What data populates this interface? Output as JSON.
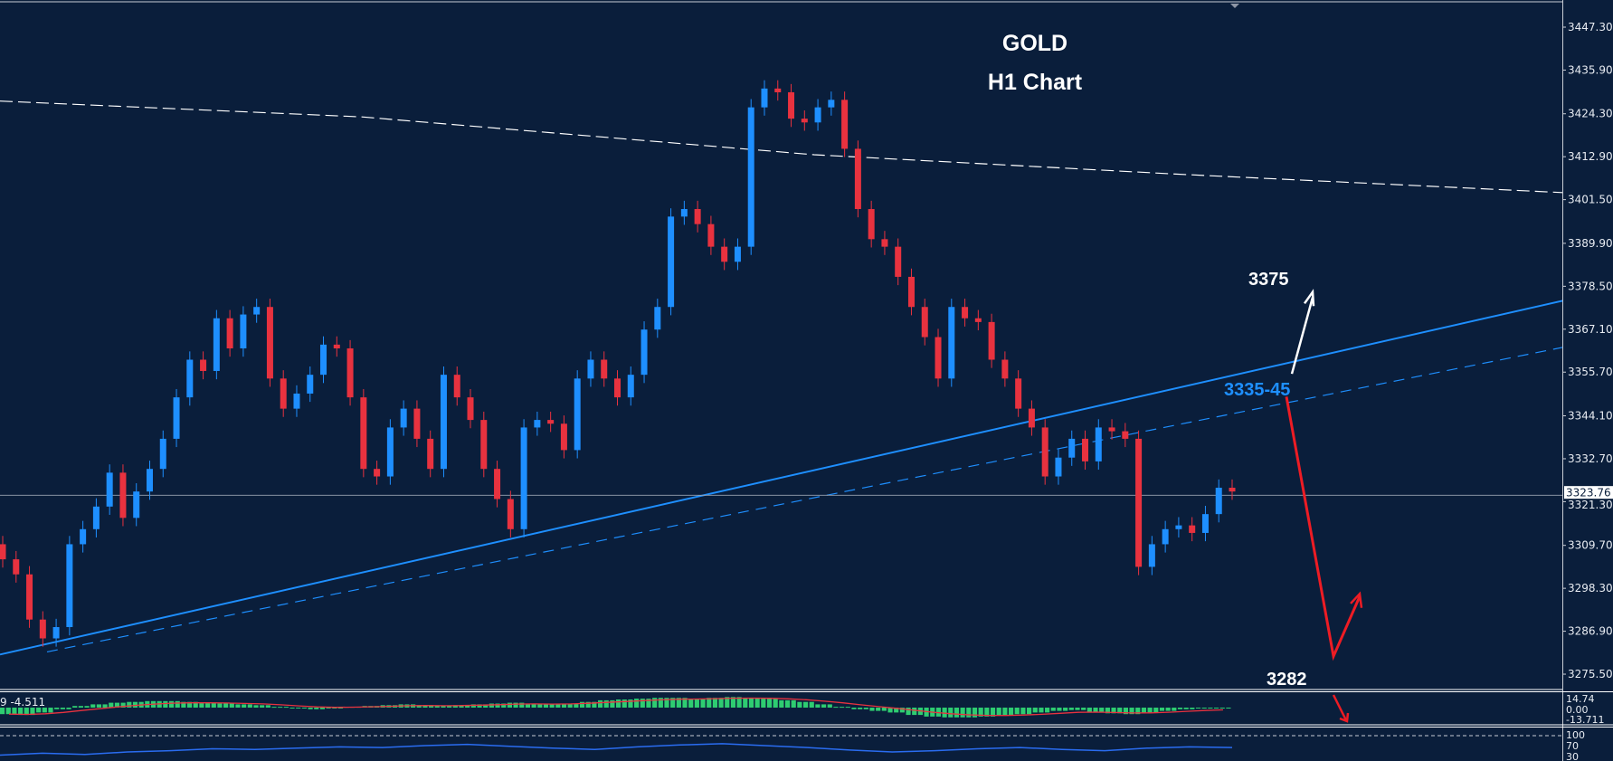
{
  "chart_data": {
    "type": "candlestick",
    "title": "GOLD",
    "subtitle": "H1 Chart",
    "ylim": [
      3270,
      3453
    ],
    "y_ticks": [
      "3447.30",
      "3435.90",
      "3424.30",
      "3412.90",
      "3401.50",
      "3389.90",
      "3378.50",
      "3367.10",
      "3355.70",
      "3344.10",
      "3332.70",
      "3321.30",
      "3309.70",
      "3298.30",
      "3286.90",
      "3275.50"
    ],
    "current_price": "3323.76",
    "first_open": 3310,
    "closes": [
      3306,
      3302,
      3290,
      3285,
      3288,
      3310,
      3314,
      3320,
      3329,
      3317,
      3324,
      3330,
      3338,
      3349,
      3359,
      3356,
      3370,
      3362,
      3371,
      3373,
      3354,
      3346,
      3350,
      3355,
      3363,
      3362,
      3349,
      3330,
      3328,
      3341,
      3346,
      3338,
      3330,
      3355,
      3349,
      3343,
      3330,
      3322,
      3314,
      3341,
      3343,
      3342,
      3335,
      3354,
      3359,
      3354,
      3349,
      3355,
      3367,
      3373,
      3397,
      3399,
      3395,
      3389,
      3385,
      3389,
      3426,
      3431,
      3430,
      3423,
      3422,
      3426,
      3428,
      3415,
      3399,
      3391,
      3389,
      3381,
      3373,
      3365,
      3354,
      3373,
      3370,
      3369,
      3359,
      3354,
      3346,
      3341,
      3328,
      3333,
      3338,
      3332,
      3341,
      3340,
      3338,
      3304,
      3310,
      3314,
      3315,
      3313,
      3318,
      3325,
      3324
    ],
    "grid": false,
    "colors": {
      "background": "#0a1e3b",
      "up": "#1e8fff",
      "down": "#e8323f",
      "trendline": "#1e8fff",
      "ma": "#ffffff",
      "annotation_red": "#ee1c24"
    },
    "annotations": {
      "target_up": "3375",
      "zone": "3335-45",
      "target_down": "3282"
    },
    "macd": {
      "label": "9 -4.511",
      "scale_labels": [
        "14.74",
        "0.00",
        "-13.711"
      ],
      "histogram": [
        -8,
        -9,
        -6,
        -2,
        2,
        4,
        6,
        7,
        8,
        8,
        7,
        6,
        5,
        4,
        3,
        1,
        -1,
        -2,
        -1,
        1,
        2,
        3,
        4,
        3,
        2,
        3,
        4,
        5,
        6,
        5,
        4,
        5,
        7,
        9,
        10,
        11,
        12,
        12,
        11,
        12,
        13,
        12,
        11,
        9,
        7,
        4,
        1,
        -2,
        -4,
        -6,
        -9,
        -11,
        -12,
        -12,
        -11,
        -10,
        -8,
        -6,
        -4,
        -3,
        -5,
        -7,
        -8,
        -6,
        -4,
        -2,
        -1,
        -1
      ]
    },
    "oscillator": {
      "scale_labels": [
        "100",
        "70",
        "30"
      ],
      "values": [
        35,
        38,
        36,
        40,
        42,
        45,
        44,
        46,
        48,
        47,
        50,
        52,
        49,
        46,
        44,
        48,
        51,
        53,
        50,
        47,
        43,
        40,
        42,
        45,
        47,
        44,
        42,
        46,
        48,
        47
      ]
    }
  }
}
